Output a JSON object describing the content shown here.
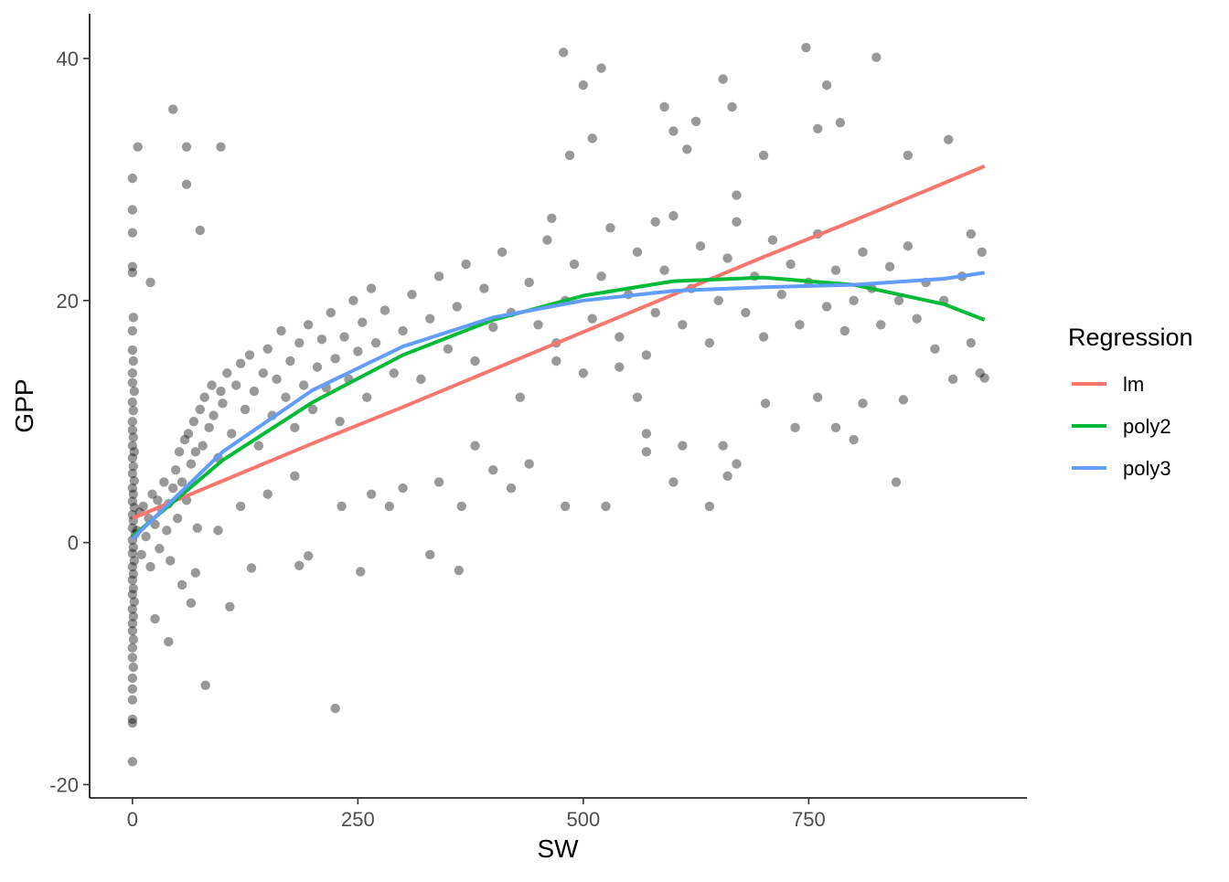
{
  "chart_data": {
    "type": "scatter",
    "title": "",
    "xlabel": "SW",
    "ylabel": "GPP",
    "xlim": [
      -47.5,
      992
    ],
    "ylim": [
      -21.1,
      43.7
    ],
    "x_ticks": [
      0,
      250,
      500,
      750
    ],
    "y_ticks": [
      -20,
      0,
      20,
      40
    ],
    "grid": false,
    "point_color": "#000000",
    "point_opacity": 0.4,
    "points": [
      [
        0,
        30.1
      ],
      [
        0,
        27.5
      ],
      [
        0,
        25.6
      ],
      [
        0,
        22.8
      ],
      [
        0,
        22.3
      ],
      [
        1,
        18.6
      ],
      [
        0,
        17.5
      ],
      [
        0,
        15.9
      ],
      [
        1,
        15
      ],
      [
        0,
        14
      ],
      [
        0,
        13.2
      ],
      [
        2,
        12.5
      ],
      [
        0,
        11.6
      ],
      [
        1,
        10.9
      ],
      [
        0,
        10
      ],
      [
        0,
        9.3
      ],
      [
        1,
        8.7
      ],
      [
        0,
        8
      ],
      [
        2,
        7.5
      ],
      [
        0,
        7
      ],
      [
        1,
        6.3
      ],
      [
        0,
        5.7
      ],
      [
        2,
        5.1
      ],
      [
        0,
        4.5
      ],
      [
        1,
        4
      ],
      [
        0,
        3.4
      ],
      [
        2,
        2.9
      ],
      [
        0,
        2.3
      ],
      [
        1,
        1.8
      ],
      [
        0,
        1.2
      ],
      [
        3,
        0.7
      ],
      [
        0,
        0.2
      ],
      [
        1,
        -0.4
      ],
      [
        0,
        -0.9
      ],
      [
        2,
        -1.5
      ],
      [
        0,
        -2
      ],
      [
        1,
        -2.6
      ],
      [
        0,
        -3.1
      ],
      [
        1,
        -3.8
      ],
      [
        0,
        -4.3
      ],
      [
        2,
        -4.9
      ],
      [
        0,
        -5.5
      ],
      [
        1,
        -6.1
      ],
      [
        0,
        -6.7
      ],
      [
        0,
        -7.3
      ],
      [
        1,
        -8
      ],
      [
        0,
        -8.7
      ],
      [
        0,
        -9.5
      ],
      [
        1,
        -10.3
      ],
      [
        0,
        -11.2
      ],
      [
        0,
        -12.1
      ],
      [
        0,
        -13
      ],
      [
        0,
        -14.6
      ],
      [
        0,
        -14.9
      ],
      [
        0,
        -18.1
      ],
      [
        5,
        1
      ],
      [
        8,
        2.5
      ],
      [
        10,
        -1
      ],
      [
        12,
        3
      ],
      [
        15,
        0.5
      ],
      [
        18,
        2
      ],
      [
        20,
        -2
      ],
      [
        22,
        4
      ],
      [
        25,
        1.5
      ],
      [
        28,
        3.5
      ],
      [
        30,
        -0.5
      ],
      [
        32,
        2.8
      ],
      [
        35,
        5
      ],
      [
        38,
        1
      ],
      [
        40,
        3.2
      ],
      [
        42,
        -1.5
      ],
      [
        45,
        4.5
      ],
      [
        48,
        6
      ],
      [
        50,
        2
      ],
      [
        52,
        7.5
      ],
      [
        55,
        5
      ],
      [
        58,
        8.5
      ],
      [
        60,
        3.5
      ],
      [
        62,
        9
      ],
      [
        65,
        6.5
      ],
      [
        68,
        10
      ],
      [
        70,
        7.5
      ],
      [
        72,
        1.2
      ],
      [
        75,
        11
      ],
      [
        78,
        8
      ],
      [
        80,
        12
      ],
      [
        85,
        9.5
      ],
      [
        88,
        13
      ],
      [
        90,
        10.5
      ],
      [
        95,
        7
      ],
      [
        98,
        12.5
      ],
      [
        100,
        11.5
      ],
      [
        105,
        14
      ],
      [
        110,
        9
      ],
      [
        115,
        13
      ],
      [
        120,
        14.8
      ],
      [
        125,
        11
      ],
      [
        130,
        15.5
      ],
      [
        135,
        12.5
      ],
      [
        140,
        8
      ],
      [
        145,
        14
      ],
      [
        150,
        16
      ],
      [
        155,
        10.5
      ],
      [
        160,
        13.5
      ],
      [
        165,
        17.5
      ],
      [
        170,
        12
      ],
      [
        175,
        15
      ],
      [
        180,
        9.5
      ],
      [
        185,
        16.5
      ],
      [
        190,
        13
      ],
      [
        195,
        18
      ],
      [
        200,
        11
      ],
      [
        205,
        14.5
      ],
      [
        210,
        16.8
      ],
      [
        215,
        12.8
      ],
      [
        220,
        19
      ],
      [
        225,
        15.2
      ],
      [
        230,
        10
      ],
      [
        235,
        17
      ],
      [
        240,
        13.5
      ],
      [
        245,
        20
      ],
      [
        250,
        15.8
      ],
      [
        255,
        18.2
      ],
      [
        260,
        12
      ],
      [
        265,
        21
      ],
      [
        270,
        16.5
      ],
      [
        280,
        19.2
      ],
      [
        290,
        14
      ],
      [
        300,
        17.5
      ],
      [
        310,
        20.5
      ],
      [
        320,
        13.5
      ],
      [
        330,
        18.5
      ],
      [
        340,
        22
      ],
      [
        350,
        16
      ],
      [
        360,
        19.5
      ],
      [
        370,
        23
      ],
      [
        380,
        15
      ],
      [
        390,
        21
      ],
      [
        400,
        17.8
      ],
      [
        410,
        24
      ],
      [
        420,
        19
      ],
      [
        430,
        12
      ],
      [
        440,
        21.5
      ],
      [
        450,
        18
      ],
      [
        460,
        25
      ],
      [
        470,
        16.5
      ],
      [
        480,
        20
      ],
      [
        490,
        23
      ],
      [
        500,
        14
      ],
      [
        510,
        18.5
      ],
      [
        520,
        22
      ],
      [
        530,
        26
      ],
      [
        540,
        17
      ],
      [
        550,
        20.5
      ],
      [
        560,
        24
      ],
      [
        570,
        15.5
      ],
      [
        580,
        19
      ],
      [
        590,
        22.5
      ],
      [
        600,
        27
      ],
      [
        610,
        18
      ],
      [
        620,
        21
      ],
      [
        630,
        24.5
      ],
      [
        640,
        16.5
      ],
      [
        650,
        20
      ],
      [
        660,
        23.5
      ],
      [
        670,
        26.5
      ],
      [
        680,
        19
      ],
      [
        690,
        22
      ],
      [
        700,
        17
      ],
      [
        710,
        25
      ],
      [
        720,
        20.5
      ],
      [
        730,
        23
      ],
      [
        740,
        18
      ],
      [
        750,
        21.5
      ],
      [
        760,
        25.5
      ],
      [
        770,
        19.5
      ],
      [
        780,
        22.5
      ],
      [
        790,
        17.5
      ],
      [
        800,
        20
      ],
      [
        810,
        24
      ],
      [
        820,
        21
      ],
      [
        830,
        18
      ],
      [
        840,
        22.8
      ],
      [
        850,
        20
      ],
      [
        860,
        24.5
      ],
      [
        870,
        18.5
      ],
      [
        880,
        21.5
      ],
      [
        890,
        16
      ],
      [
        900,
        20
      ],
      [
        910,
        13.5
      ],
      [
        920,
        22
      ],
      [
        930,
        16.5
      ],
      [
        940,
        14
      ],
      [
        945,
        13.6
      ],
      [
        6,
        32.7
      ],
      [
        45,
        35.8
      ],
      [
        60,
        32.7
      ],
      [
        98,
        32.7
      ],
      [
        60,
        29.6
      ],
      [
        75,
        25.8
      ],
      [
        20,
        21.5
      ],
      [
        25,
        -6.3
      ],
      [
        40,
        -8.2
      ],
      [
        55,
        -3.5
      ],
      [
        65,
        -5
      ],
      [
        81,
        -11.8
      ],
      [
        108,
        -5.3
      ],
      [
        132,
        -2.1
      ],
      [
        185,
        -1.9
      ],
      [
        195,
        -1.1
      ],
      [
        253,
        -2.4
      ],
      [
        225,
        -13.7
      ],
      [
        362,
        -2.3
      ],
      [
        232,
        3
      ],
      [
        285,
        3
      ],
      [
        365,
        3
      ],
      [
        478,
        40.5
      ],
      [
        485,
        32
      ],
      [
        500,
        37.8
      ],
      [
        520,
        39.2
      ],
      [
        510,
        33.4
      ],
      [
        465,
        26.8
      ],
      [
        480,
        3
      ],
      [
        525,
        3
      ],
      [
        580,
        26.5
      ],
      [
        590,
        36
      ],
      [
        600,
        34
      ],
      [
        615,
        32.5
      ],
      [
        625,
        34.8
      ],
      [
        655,
        38.3
      ],
      [
        665,
        36
      ],
      [
        670,
        28.7
      ],
      [
        700,
        32
      ],
      [
        747,
        40.9
      ],
      [
        760,
        34.2
      ],
      [
        770,
        37.8
      ],
      [
        785,
        34.7
      ],
      [
        825,
        40.1
      ],
      [
        860,
        32
      ],
      [
        905,
        33.3
      ],
      [
        847,
        5
      ],
      [
        780,
        9.5
      ],
      [
        800,
        8.5
      ],
      [
        760,
        12
      ],
      [
        735,
        9.5
      ],
      [
        655,
        8
      ],
      [
        660,
        5.5
      ],
      [
        600,
        5
      ],
      [
        610,
        8
      ],
      [
        570,
        7.5
      ],
      [
        560,
        12
      ],
      [
        640,
        3
      ],
      [
        670,
        6.5
      ],
      [
        702,
        11.5
      ],
      [
        810,
        11.5
      ],
      [
        855,
        11.8
      ],
      [
        570,
        9
      ],
      [
        470,
        15
      ],
      [
        440,
        6.5
      ],
      [
        400,
        6
      ],
      [
        380,
        8
      ],
      [
        340,
        5
      ],
      [
        300,
        4.5
      ],
      [
        265,
        4
      ],
      [
        180,
        5.5
      ],
      [
        150,
        4
      ],
      [
        120,
        3
      ],
      [
        95,
        1
      ],
      [
        70,
        -2.5
      ],
      [
        330,
        -1
      ],
      [
        420,
        4.5
      ],
      [
        540,
        14.5
      ],
      [
        930,
        25.5
      ],
      [
        942,
        24
      ]
    ],
    "legend": {
      "title": "Regression",
      "position": "right"
    },
    "series": [
      {
        "name": "lm",
        "color": "#F8766D",
        "x": [
          0,
          100,
          200,
          300,
          400,
          500,
          600,
          700,
          800,
          900,
          945
        ],
        "y": [
          2,
          5.1,
          8.2,
          11.2,
          14.3,
          17.4,
          20.5,
          23.6,
          26.6,
          29.7,
          31.1
        ]
      },
      {
        "name": "poly2",
        "color": "#00BA38",
        "x": [
          0,
          100,
          200,
          300,
          400,
          500,
          600,
          700,
          800,
          900,
          945
        ],
        "y": [
          0.5,
          6.8,
          11.6,
          15.5,
          18.4,
          20.4,
          21.6,
          21.9,
          21.3,
          19.7,
          18.4
        ]
      },
      {
        "name": "poly3",
        "color": "#619CFF",
        "x": [
          0,
          100,
          200,
          300,
          400,
          500,
          600,
          700,
          800,
          900,
          945
        ],
        "y": [
          0.3,
          7.5,
          12.6,
          16.2,
          18.6,
          20.0,
          20.8,
          21.1,
          21.3,
          21.8,
          22.3
        ]
      }
    ]
  }
}
